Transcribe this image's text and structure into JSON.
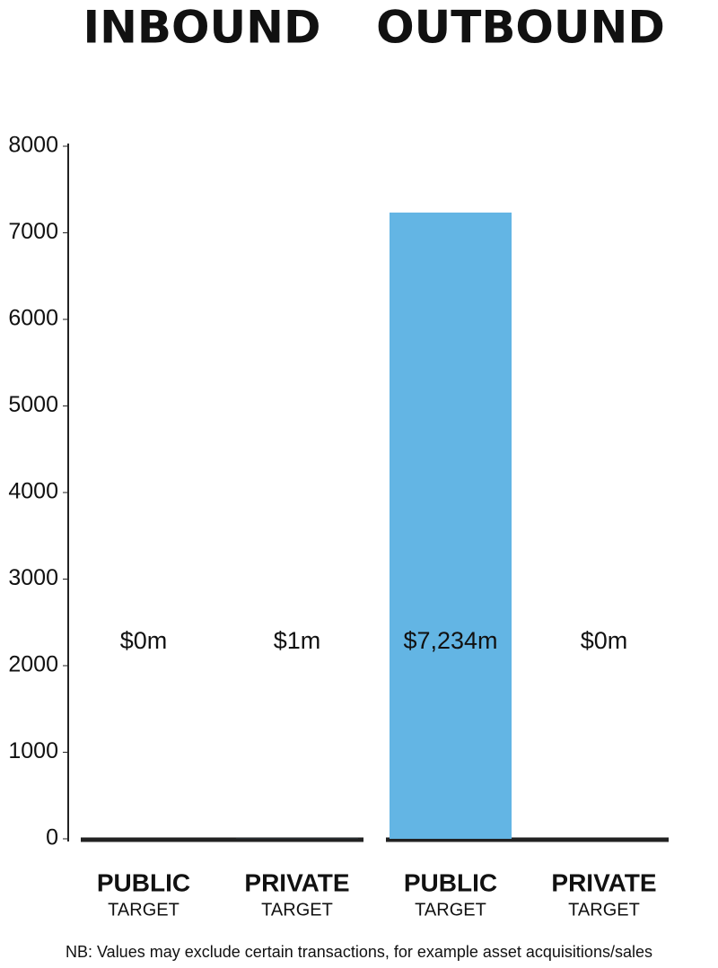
{
  "chart_data": {
    "type": "bar",
    "groups": [
      "INBOUND",
      "OUTBOUND"
    ],
    "categories": [
      "PUBLIC",
      "PRIVATE",
      "PUBLIC",
      "PRIVATE"
    ],
    "category_sublabels": [
      "TARGET",
      "TARGET",
      "TARGET",
      "TARGET"
    ],
    "values": [
      0,
      1,
      7234,
      0
    ],
    "value_labels": [
      "$0m",
      "$1m",
      "$7,234m",
      "$0m"
    ],
    "color": "#63b5e4",
    "ylim": [
      0,
      8000
    ],
    "yticks": [
      0,
      1000,
      2000,
      3000,
      4000,
      5000,
      6000,
      7000,
      8000
    ],
    "note": "NB: Values may exclude certain transactions, for example asset acquisitions/sales"
  }
}
